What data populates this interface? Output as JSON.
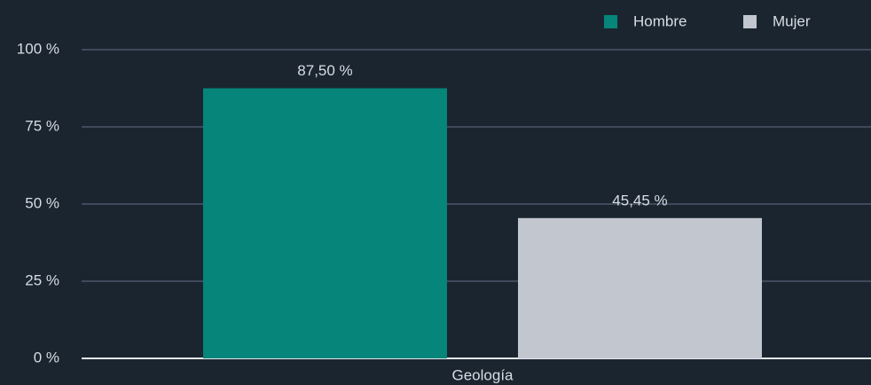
{
  "chart_data": {
    "type": "bar",
    "categories": [
      "Geología"
    ],
    "series": [
      {
        "name": "Hombre",
        "color": "#06857a",
        "values": [
          87.5
        ],
        "value_labels": [
          "87,50 %"
        ]
      },
      {
        "name": "Mujer",
        "color": "#c2c6cf",
        "values": [
          45.45
        ],
        "value_labels": [
          "45,45 %"
        ]
      }
    ],
    "ylim": [
      0,
      100
    ],
    "yticks": [
      {
        "value": 0,
        "label": "0 %"
      },
      {
        "value": 25,
        "label": "25 %"
      },
      {
        "value": 50,
        "label": "50 %"
      },
      {
        "value": 75,
        "label": "75 %"
      },
      {
        "value": 100,
        "label": "100 %"
      }
    ],
    "grid": true,
    "legend": "top-right"
  }
}
